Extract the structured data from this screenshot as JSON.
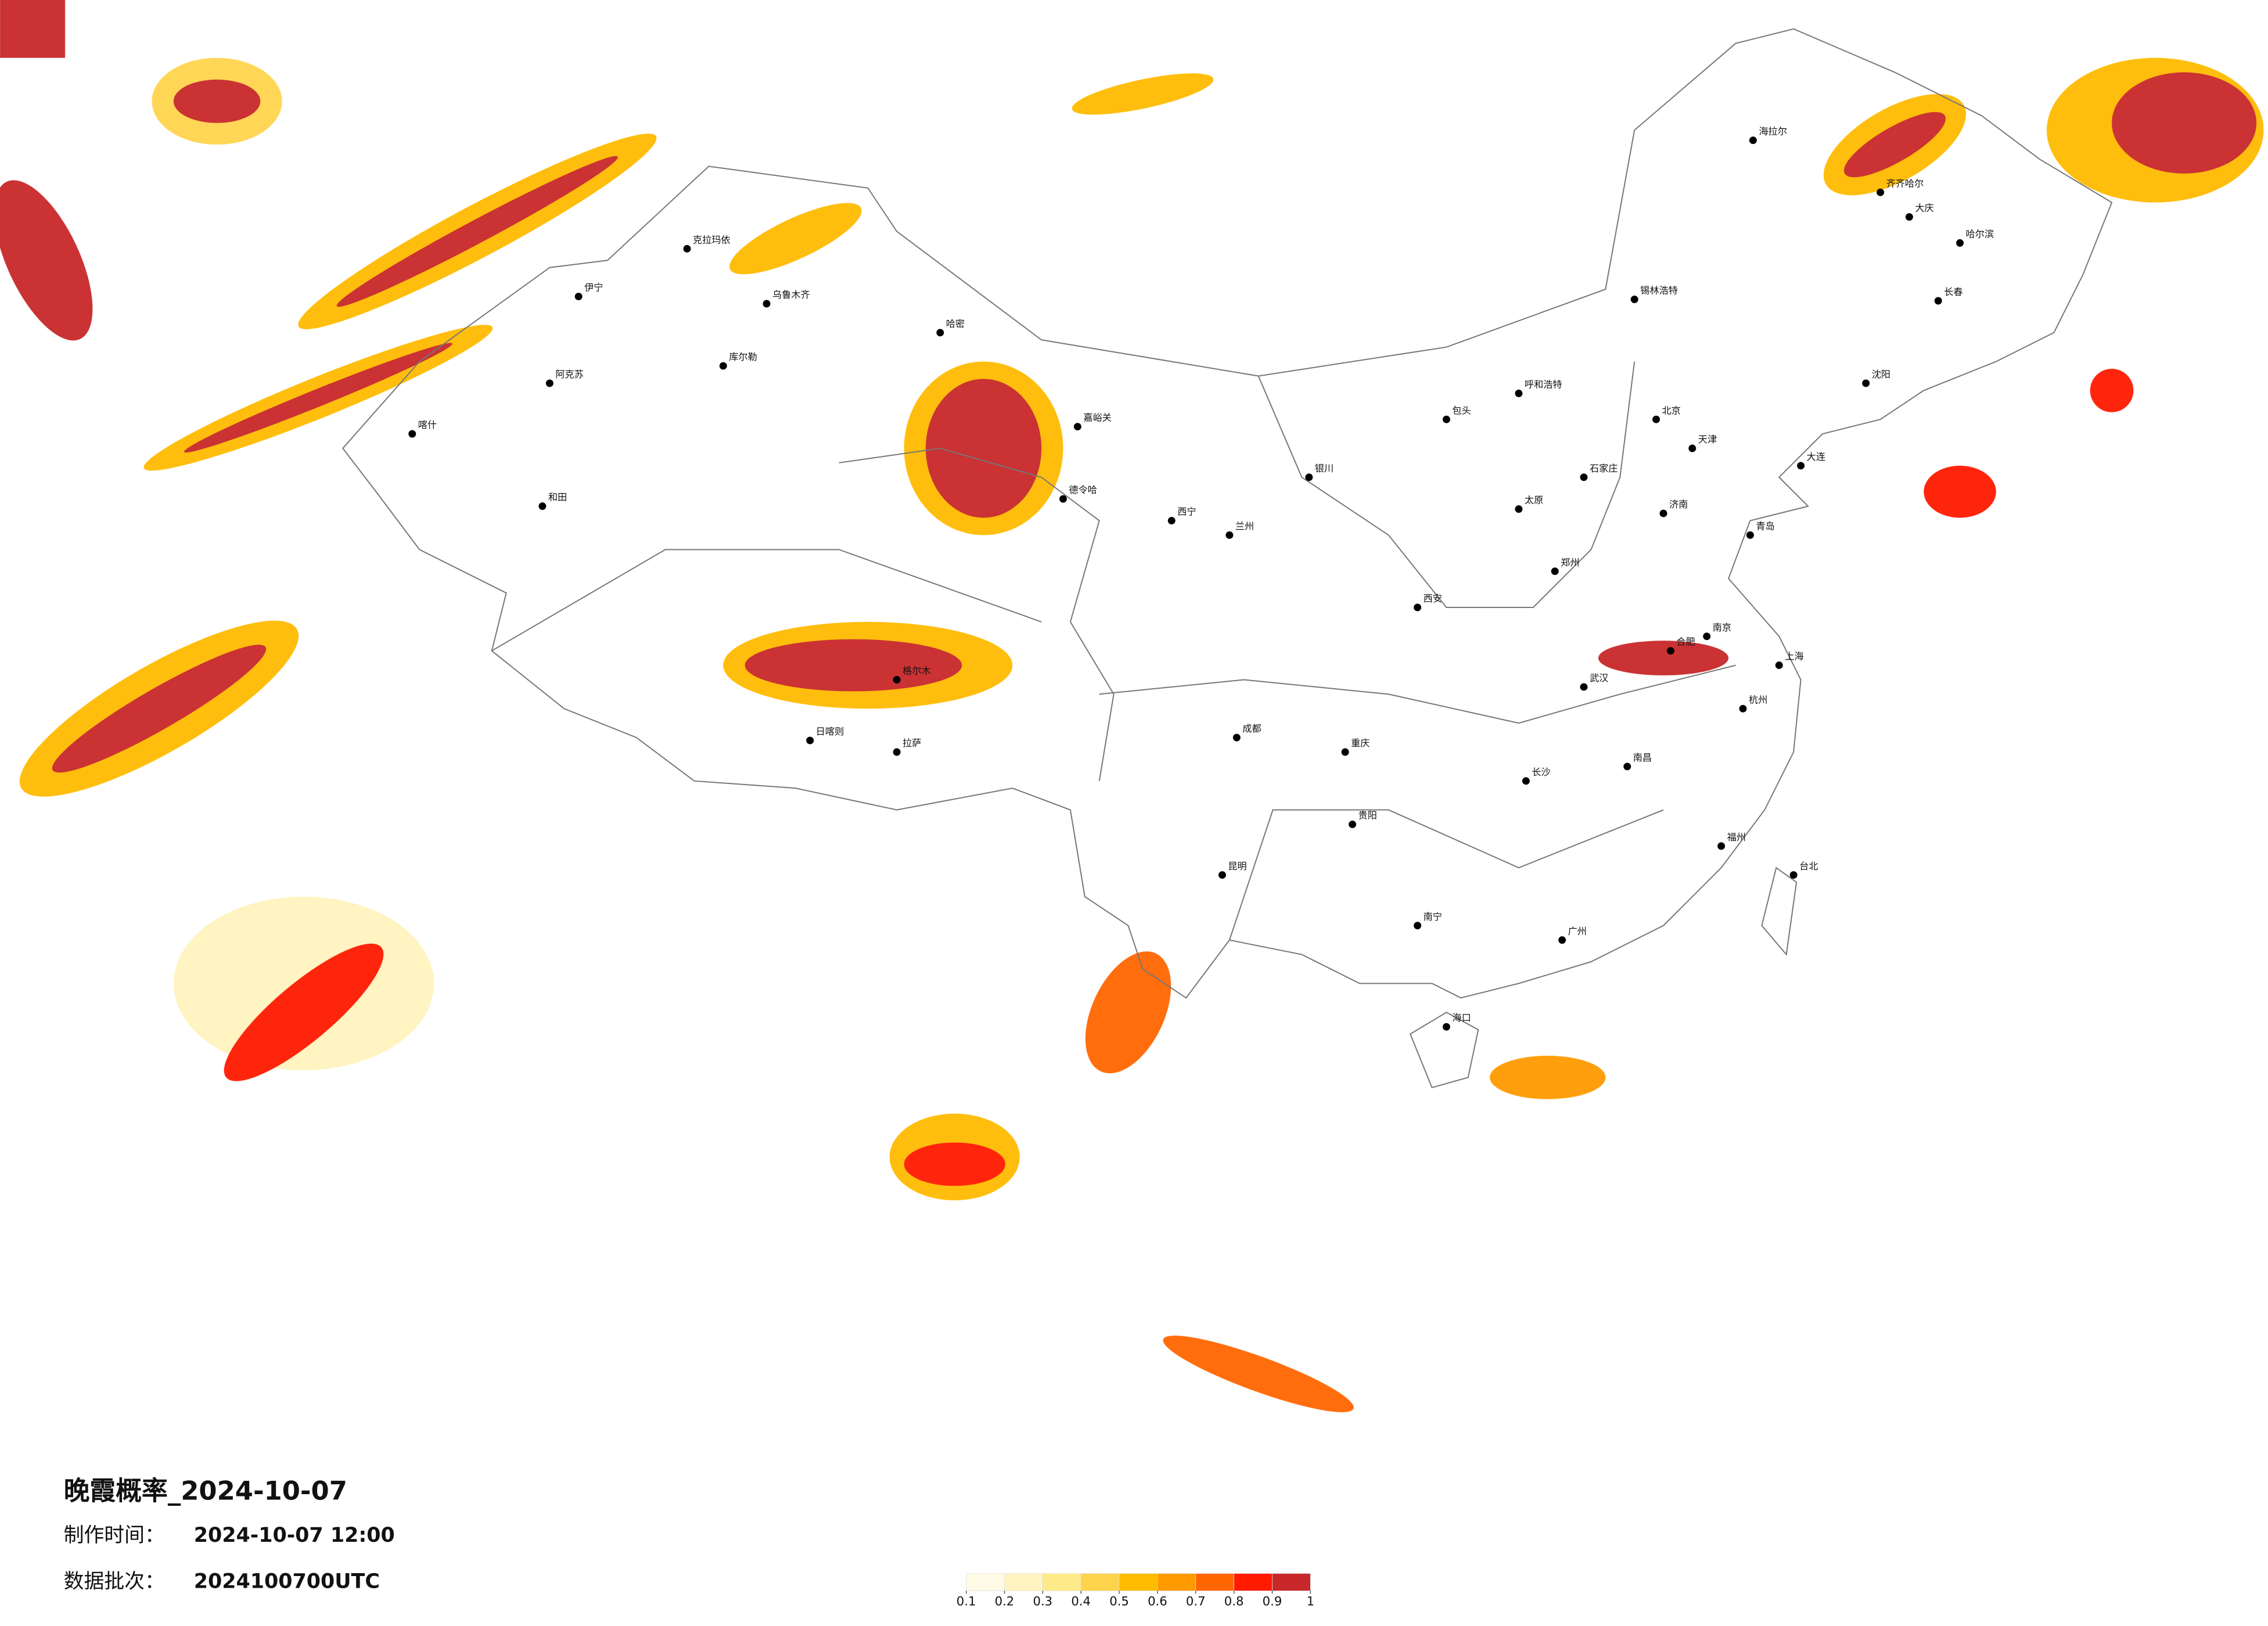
{
  "map": {
    "title": "晚霞概率_2024-10-07",
    "made_label": "制作时间：",
    "made_value": "2024-10-07 12:00",
    "batch_label": "数据批次：",
    "batch_value": "2024100700UTC",
    "colorbar": {
      "ticks": [
        0.1,
        0.2,
        0.3,
        0.4,
        0.5,
        0.6,
        0.7,
        0.8,
        0.9,
        1
      ],
      "colors": [
        "#fffbe6",
        "#fff4bf",
        "#ffea8a",
        "#ffd44d",
        "#ffbb00",
        "#ff9a00",
        "#ff6600",
        "#ff1a00",
        "#c8282a"
      ]
    },
    "cities": [
      "海拉尔",
      "齐齐哈尔",
      "哈尔滨",
      "大庆",
      "长春",
      "沈阳",
      "大连",
      "锡林浩特",
      "呼和浩特",
      "包头",
      "北京",
      "天津",
      "石家庄",
      "太原",
      "济南",
      "青岛",
      "郑州",
      "西安",
      "兰州",
      "西宁",
      "银川",
      "成都",
      "重庆",
      "贵阳",
      "昆明",
      "南宁",
      "广州",
      "海口",
      "长沙",
      "武汉",
      "南昌",
      "合肥",
      "南京",
      "上海",
      "杭州",
      "福州",
      "台北",
      "乌鲁木齐",
      "克拉玛依",
      "伊宁",
      "阿克苏",
      "库尔勒",
      "喀什",
      "和田",
      "哈密",
      "嘉峪关",
      "德令哈",
      "格尔木",
      "拉萨",
      "日喀则"
    ]
  }
}
